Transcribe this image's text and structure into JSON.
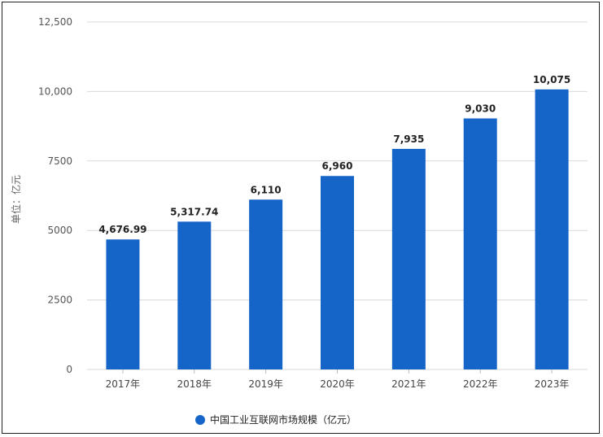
{
  "chart_data": {
    "type": "bar",
    "categories": [
      "2017年",
      "2018年",
      "2019年",
      "2020年",
      "2021年",
      "2022年",
      "2023年"
    ],
    "series": [
      {
        "name": "中国工业互联网市场规模（亿元）",
        "values": [
          4676.99,
          5317.74,
          6110,
          6960,
          7935,
          9030,
          10075
        ],
        "color": "#1565c8"
      }
    ],
    "data_labels": [
      "4,676.99",
      "5,317.74",
      "6,110",
      "6,960",
      "7,935",
      "9,030",
      "10,075"
    ],
    "ylabel": "单位：亿元",
    "ylim": [
      0,
      12500
    ],
    "yticks": [
      0,
      2500,
      5000,
      7500,
      10000,
      12500
    ],
    "ytick_labels": [
      "0",
      "2500",
      "5000",
      "7500",
      "10,000",
      "12,500"
    ],
    "grid": true,
    "legend_position": "bottom-center"
  }
}
